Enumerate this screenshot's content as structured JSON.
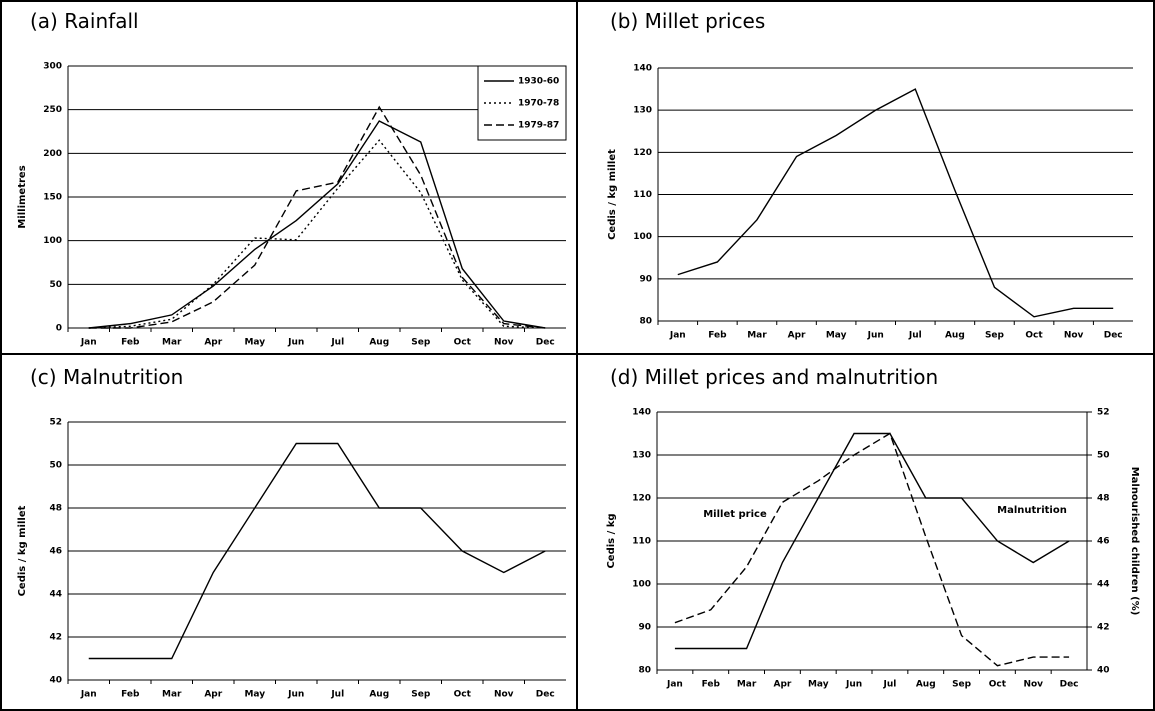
{
  "chart_data": [
    {
      "type": "line",
      "title": "(a) Rainfall",
      "y_label": "Millimetres",
      "categories": [
        "Jan",
        "Feb",
        "Mar",
        "Apr",
        "May",
        "Jun",
        "Jul",
        "Aug",
        "Sep",
        "Oct",
        "Nov",
        "Dec"
      ],
      "series": [
        {
          "name": "1930-60",
          "color": "#000000",
          "style": "solid",
          "values": [
            0,
            5,
            15,
            48,
            90,
            123,
            165,
            237,
            213,
            68,
            8,
            0
          ]
        },
        {
          "name": "1970-78",
          "color": "#000000",
          "style": "dotted",
          "values": [
            0,
            2,
            10,
            50,
            103,
            101,
            160,
            215,
            155,
            55,
            2,
            0
          ]
        },
        {
          "name": "1979-87",
          "color": "#000000",
          "style": "dashed",
          "values": [
            0,
            0,
            7,
            30,
            72,
            157,
            167,
            253,
            175,
            58,
            5,
            0
          ]
        }
      ],
      "ylim": [
        0,
        300
      ],
      "yticks": [
        0,
        50,
        100,
        150,
        200,
        250,
        300
      ],
      "grid": true,
      "legend": "top-right"
    },
    {
      "type": "line",
      "title": "(b) Millet prices",
      "y_label": "Cedis / kg millet",
      "categories": [
        "Jan",
        "Feb",
        "Mar",
        "Apr",
        "May",
        "Jun",
        "Jul",
        "Aug",
        "Sep",
        "Oct",
        "Nov",
        "Dec"
      ],
      "series": [
        {
          "color": "#000000",
          "style": "solid",
          "values": [
            91,
            94,
            104,
            119,
            124,
            130,
            135,
            111,
            88,
            81,
            83,
            83
          ]
        }
      ],
      "ylim": [
        80,
        140
      ],
      "yticks": [
        80,
        90,
        100,
        110,
        120,
        130,
        140
      ],
      "grid": true
    },
    {
      "type": "line",
      "title": "(c) Malnutrition",
      "y_label": "Cedis / kg millet",
      "categories": [
        "Jan",
        "Feb",
        "Mar",
        "Apr",
        "May",
        "Jun",
        "Jul",
        "Aug",
        "Sep",
        "Oct",
        "Nov",
        "Dec"
      ],
      "series": [
        {
          "color": "#000000",
          "style": "solid",
          "values": [
            41,
            41,
            41,
            45,
            48,
            51,
            51,
            48,
            48,
            46,
            45,
            46
          ]
        }
      ],
      "ylim": [
        40,
        52
      ],
      "yticks": [
        40,
        42,
        44,
        46,
        48,
        50,
        52
      ],
      "grid": true
    },
    {
      "type": "line",
      "title": "(d) Millet prices and malnutrition",
      "y_label": "Cedis / kg",
      "y2_label": "Malnourished children (%)",
      "categories": [
        "Jan",
        "Feb",
        "Mar",
        "Apr",
        "May",
        "Jun",
        "Jul",
        "Aug",
        "Sep",
        "Oct",
        "Nov",
        "Dec"
      ],
      "series": [
        {
          "color": "#000000",
          "style": "dashed",
          "values": [
            91,
            94,
            104,
            119,
            124,
            130,
            135,
            111,
            88,
            81,
            83,
            83
          ]
        },
        {
          "color": "#000000",
          "style": "solid",
          "axis": "y2",
          "values": [
            41,
            41,
            41,
            45,
            48,
            51,
            51,
            48,
            48,
            46,
            45,
            46
          ]
        }
      ],
      "ylim": [
        80,
        140
      ],
      "yticks": [
        80,
        90,
        100,
        110,
        120,
        130,
        140
      ],
      "y2lim": [
        40,
        52
      ],
      "y2ticks": [
        40,
        42,
        44,
        46,
        48,
        50,
        52
      ],
      "grid": true,
      "annotations": [
        "Millet price",
        "Malnutrition"
      ]
    }
  ]
}
